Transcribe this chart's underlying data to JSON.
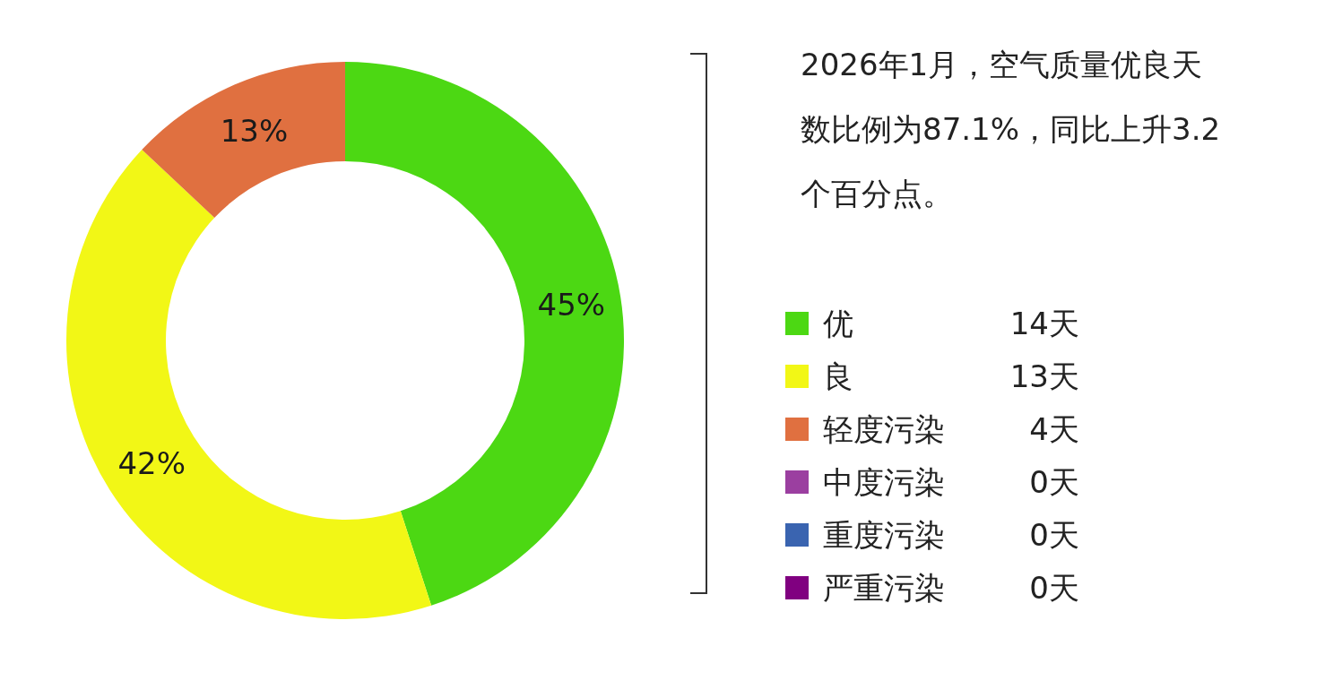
{
  "chart_data": {
    "type": "donut",
    "title": "2026年1月，空气质量优良天数比例为87.1%，同比上升3.2个百分点。",
    "categories": [
      "优",
      "良",
      "轻度污染",
      "中度污染",
      "重度污染",
      "严重污染"
    ],
    "values": [
      45,
      42,
      13,
      0,
      0,
      0
    ],
    "colors": [
      "#4cd813",
      "#f2f716",
      "#e07040",
      "#9b3fa0",
      "#3a64b0",
      "#800080"
    ],
    "value_labels": [
      "45%",
      "42%",
      "13%",
      null,
      null,
      null
    ],
    "annotations": [
      "14天",
      "13天",
      "4天",
      "0天",
      "0天",
      "0天"
    ],
    "legend": "right"
  }
}
